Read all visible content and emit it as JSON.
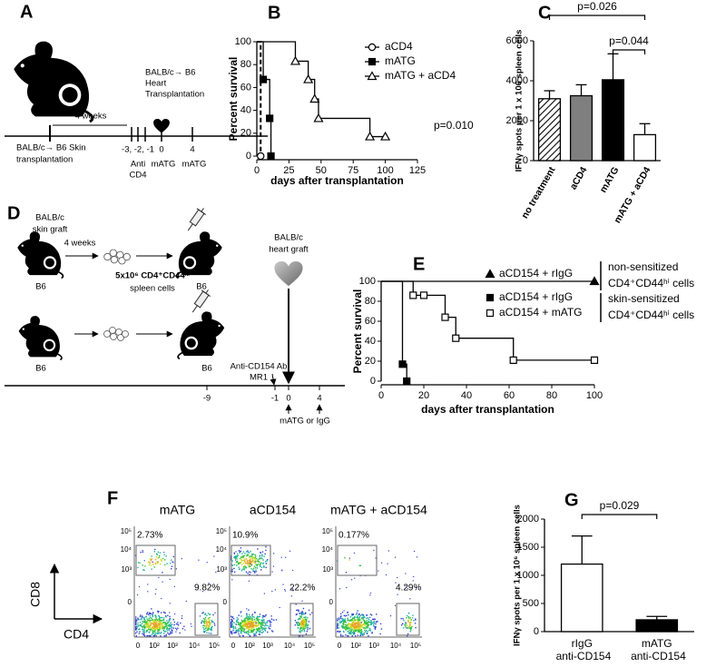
{
  "panel_a": {
    "label": "A",
    "heart_title": [
      "BALB/c→ B6",
      "Heart",
      "Transplantation"
    ],
    "interval": "4 weeks",
    "skin": [
      "BALB/c→ B6 Skin",
      "transplantation"
    ],
    "times": [
      "-3, -2, -1",
      "0",
      "4"
    ],
    "treatments": [
      "Anti",
      "CD4",
      "mATG",
      "mATG"
    ]
  },
  "chart_data": [
    {
      "type": "line",
      "panel": "B",
      "step": true,
      "xlabel": "days after transplantation",
      "ylabel": "Percent survival",
      "xlim": [
        0,
        125
      ],
      "ylim": [
        0,
        100
      ],
      "xticks": [
        0,
        25,
        50,
        75,
        100,
        125
      ],
      "yticks": [
        0,
        20,
        40,
        60,
        80,
        100
      ],
      "legend": "upper right",
      "annotation": "p=0.010",
      "series": [
        {
          "name": "aCD4",
          "color": "#000000",
          "marker": "circle-open",
          "dashed": true,
          "x": [
            0,
            3
          ],
          "values": [
            100,
            0
          ]
        },
        {
          "name": "mATG",
          "color": "#000000",
          "marker": "square-filled",
          "dashed": false,
          "x": [
            0,
            5,
            10,
            11
          ],
          "values": [
            100,
            67,
            33,
            0
          ]
        },
        {
          "name": "mATG + aCD4",
          "color": "#000000",
          "marker": "triangle-open",
          "dashed": false,
          "x": [
            0,
            30,
            40,
            45,
            48,
            88,
            100
          ],
          "values": [
            100,
            83,
            67,
            50,
            33,
            17,
            17
          ]
        }
      ]
    },
    {
      "type": "bar",
      "panel": "C",
      "ylabel": "IFNγ spots per 1 x 106 spleen cells",
      "categories": [
        "no treatment",
        "aCD4",
        "mATG",
        "mATG + aCD4"
      ],
      "values": [
        3100,
        3250,
        4050,
        1300
      ],
      "errors": [
        400,
        550,
        1300,
        550
      ],
      "fills": [
        "hatch",
        "#7f7f7f",
        "#000000",
        "#ffffff"
      ],
      "ylim": [
        0,
        6000
      ],
      "yticks": [
        0,
        2000,
        4000,
        6000
      ],
      "comparisons": [
        {
          "label": "p=0.026",
          "between": [
            "no treatment",
            "mATG + aCD4"
          ]
        },
        {
          "label": "p=0.044",
          "between": [
            "mATG",
            "mATG + aCD4"
          ]
        }
      ]
    },
    {
      "type": "line",
      "panel": "E",
      "step": true,
      "xlabel": "days after transplantation",
      "ylabel": "Percent survival",
      "xlim": [
        0,
        100
      ],
      "ylim": [
        0,
        100
      ],
      "xticks": [
        0,
        20,
        40,
        60,
        80,
        100
      ],
      "yticks": [
        0,
        20,
        40,
        60,
        80,
        100
      ],
      "legend": "upper right",
      "legend_notes": [
        [
          "non-sensitized",
          "CD4⁺CD44ʰⁱ cells"
        ],
        [
          "skin-sensitized",
          "CD4⁺CD44ʰⁱ cells"
        ]
      ],
      "series": [
        {
          "name": "aCD154 + rIgG",
          "color": "#000000",
          "marker": "triangle-filled",
          "dashed": false,
          "x": [
            0,
            100
          ],
          "values": [
            100,
            100
          ]
        },
        {
          "name": "aCD154 + rIgG",
          "color": "#000000",
          "marker": "square-filled",
          "dashed": false,
          "x": [
            0,
            10,
            12
          ],
          "values": [
            100,
            17,
            0
          ]
        },
        {
          "name": "aCD154 + mATG",
          "color": "#000000",
          "marker": "square-open",
          "dashed": false,
          "x": [
            0,
            15,
            20,
            30,
            35,
            62,
            100
          ],
          "values": [
            100,
            86,
            86,
            64,
            43,
            21,
            21
          ]
        }
      ]
    },
    {
      "type": "bar",
      "panel": "G",
      "ylabel": "IFNγ spots per 1 x 10⁶ spleen cells",
      "categories": [
        "rIgG anti-CD154",
        "mATG anti-CD154"
      ],
      "values": [
        1200,
        210
      ],
      "errors": [
        500,
        60
      ],
      "fills": [
        "#ffffff",
        "#000000"
      ],
      "ylim": [
        0,
        2000
      ],
      "yticks": [
        0,
        500,
        1000,
        1500,
        2000
      ],
      "comparisons": [
        {
          "label": "p=0.029",
          "between": [
            "rIgG anti-CD154",
            "mATG anti-CD154"
          ]
        }
      ]
    }
  ],
  "panel_d": {
    "label": "D",
    "graft": [
      "BALB/c",
      "skin graft"
    ],
    "interval": "4 weeks",
    "strain": "B6",
    "cells": [
      "5x10⁶ CD4⁺CD44ʰⁱ",
      "spleen cells"
    ],
    "heart": [
      "BALB/c",
      "heart graft"
    ],
    "antibody": [
      "Anti-CD154 Ab",
      "MR1"
    ],
    "times": [
      "-9",
      "-1",
      "0",
      "4"
    ],
    "treatment": "mATG or IgG"
  },
  "panel_f": {
    "label": "F",
    "ylabel": "CD8",
    "xlabel": "CD4",
    "plots": [
      {
        "title": "mATG",
        "upper": "2.73%",
        "lower": "9.82%"
      },
      {
        "title": "aCD154",
        "upper": "10.9%",
        "lower": "22.2%"
      },
      {
        "title": "mATG + aCD154",
        "upper": "0.177%",
        "lower": "4.29%"
      }
    ],
    "yticks": [
      "10⁵",
      "10⁴",
      "10³",
      "0"
    ],
    "xticks": [
      "0",
      "10²",
      "10³",
      "10⁴",
      "10⁵"
    ]
  }
}
